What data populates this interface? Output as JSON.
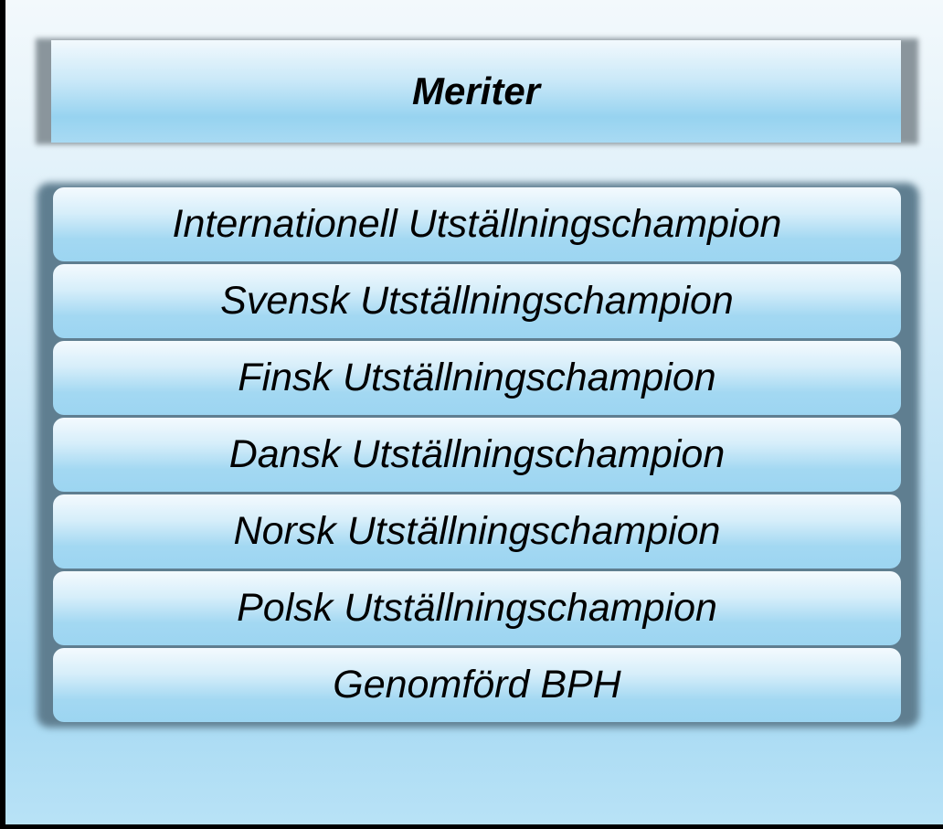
{
  "title": "Meriter",
  "items": [
    "Internationell Utställningschampion",
    "Svensk Utställningschampion",
    "Finsk Utställningschampion",
    "Dansk Utställningschampion",
    "Norsk Utställningschampion",
    "Polsk Utställningschampion",
    "Genomförd BPH"
  ]
}
